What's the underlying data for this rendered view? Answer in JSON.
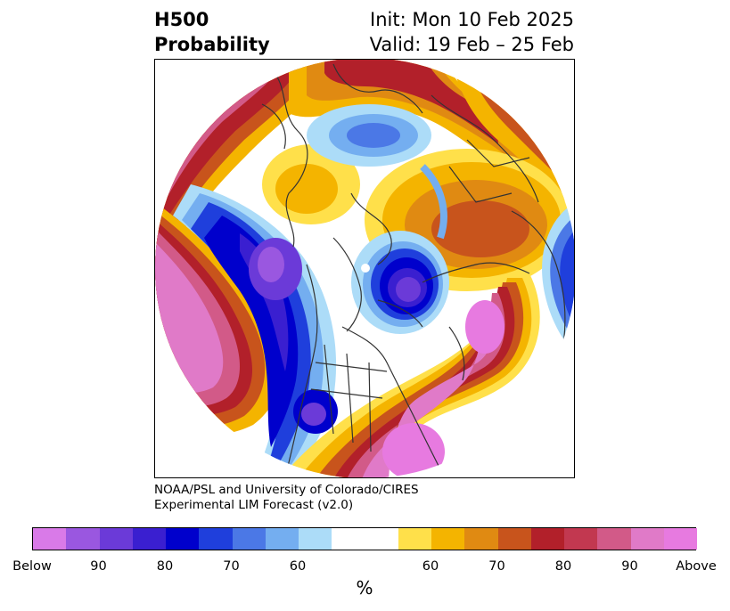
{
  "title": {
    "variable_line1": "H500",
    "variable_line2": "Probability",
    "init_line": "Init: Mon 10 Feb 2025",
    "valid_line": "Valid: 19 Feb – 25 Feb"
  },
  "credit": {
    "line1": "NOAA/PSL and University of Colorado/CIRES",
    "line2": "Experimental LIM Forecast (v2.0)"
  },
  "map": {
    "projection": "north-polar-stereographic",
    "field": "500 hPa height anomaly probability",
    "colors": {
      "below_extreme": "#d77be8",
      "below_strong": "#0000cc",
      "above_extreme": "#e27ad9",
      "above_strong": "#b2202a",
      "neutral": "#ffffff",
      "coastline": "#333333"
    }
  },
  "colorbar": {
    "unit_label": "%",
    "segments": [
      "#d97ae8",
      "#9a57e0",
      "#6b3ad8",
      "#3a1fd0",
      "#0000cc",
      "#1f3fdc",
      "#4b78e6",
      "#74aef0",
      "#acdcf8",
      "#ffffff",
      "#ffffff",
      "#ffe04a",
      "#f4b400",
      "#e08a12",
      "#c8541c",
      "#b2202a",
      "#c23850",
      "#d25a88",
      "#e07ac8",
      "#e77ae0"
    ],
    "tick_labels": [
      "Below",
      "90",
      "80",
      "70",
      "60",
      "60",
      "70",
      "80",
      "90",
      "Above"
    ]
  }
}
